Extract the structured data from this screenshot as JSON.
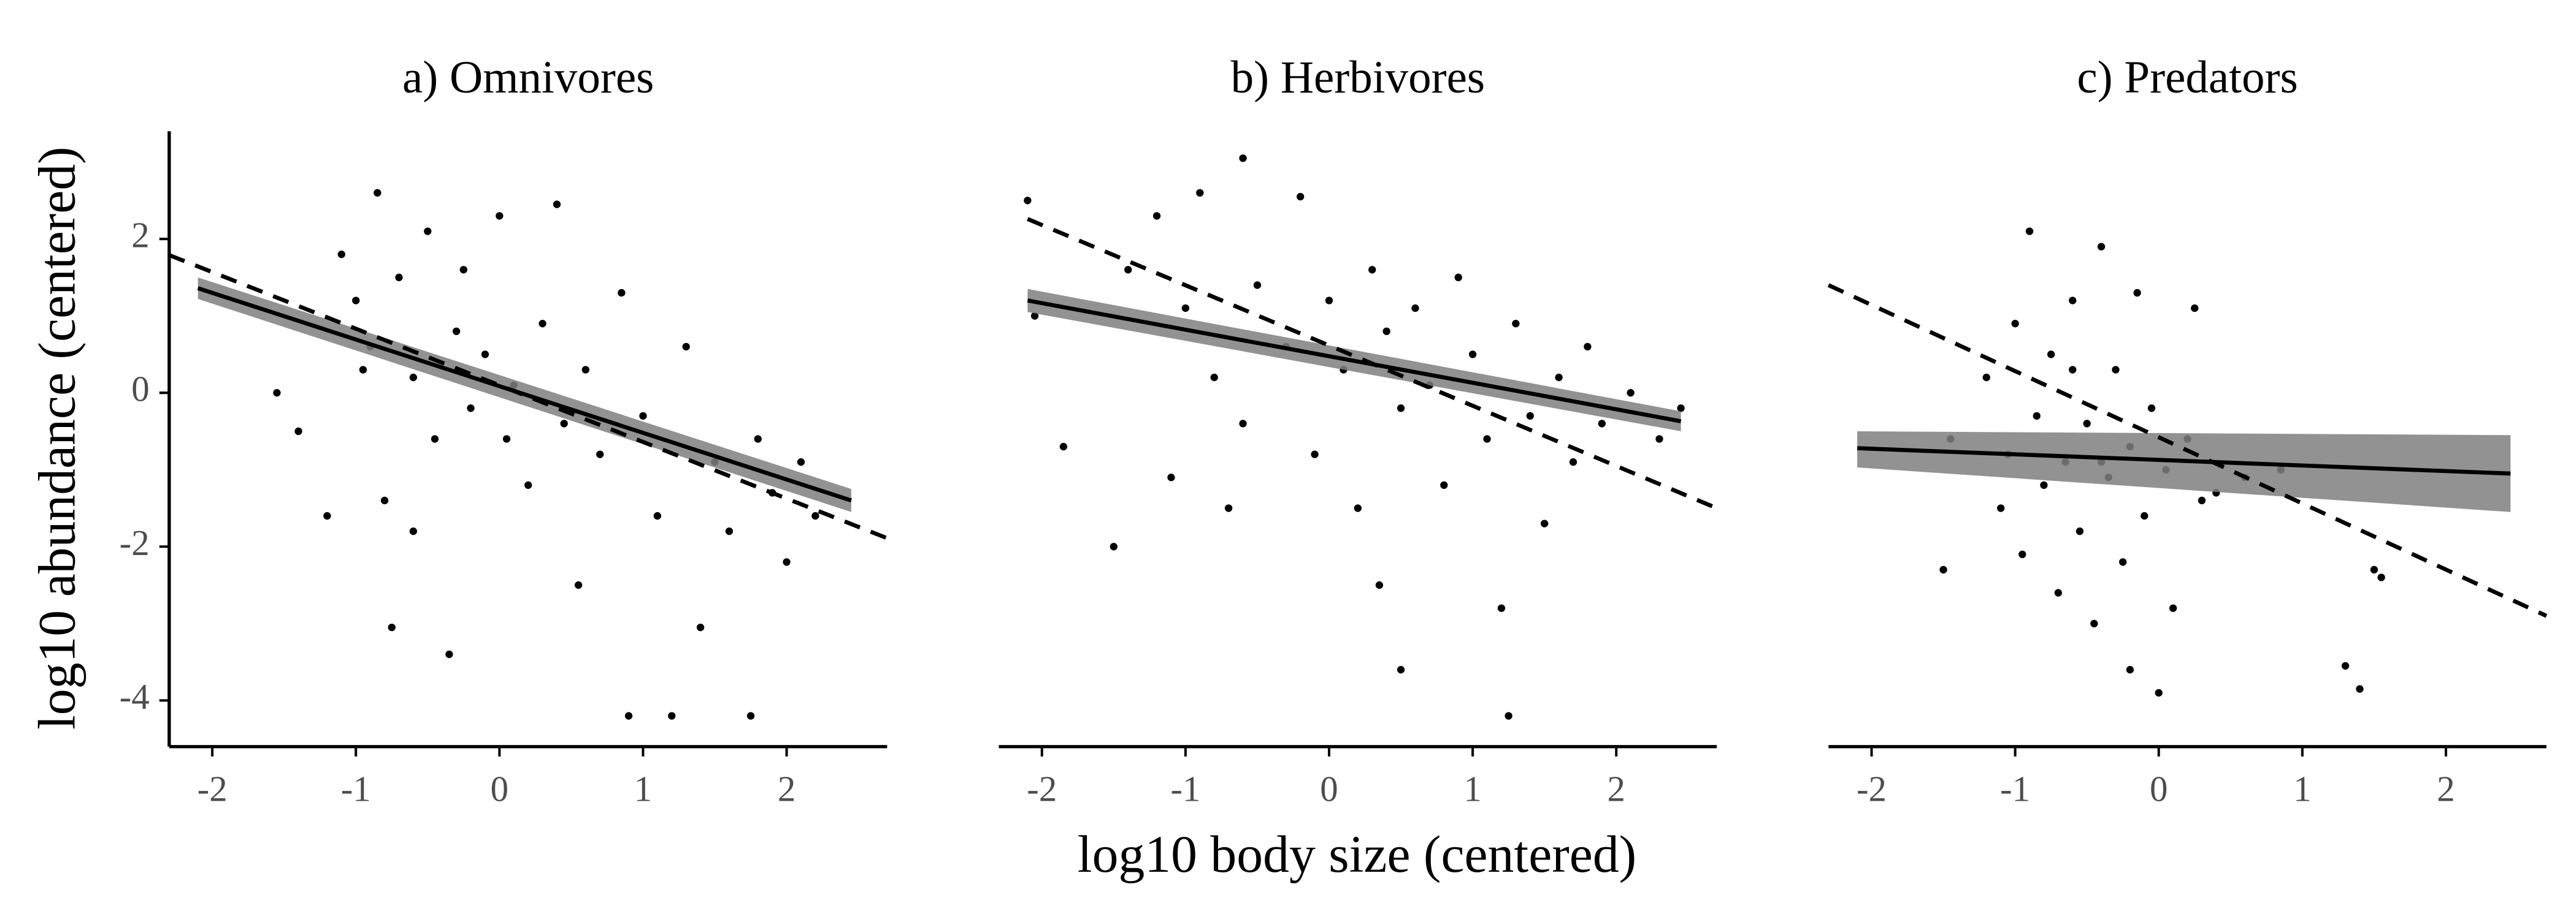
{
  "chart_data": [
    {
      "type": "scatter",
      "title": "a) Omnivores",
      "y_label": "log10 abundance (centered)",
      "color": "#000000",
      "x": [
        -1.1,
        -1,
        -0.9,
        -0.85,
        -0.8,
        -0.75,
        -0.7,
        -0.6,
        -0.5,
        -0.45,
        -0.35,
        -0.3,
        -0.25,
        -0.2,
        -0.1,
        0,
        0.1,
        0.2,
        0.3,
        0.4,
        0.45,
        0.55,
        0.6,
        0.7,
        0.85,
        0.9,
        1,
        1.1,
        1.2,
        1.3,
        1.4,
        1.5,
        1.6,
        1.75,
        1.8,
        1.9,
        2,
        2.1,
        2.2,
        -1.55,
        -1.4,
        -1.2,
        -0.95,
        0.05,
        -0.6
      ],
      "y": [
        1.8,
        1.2,
        0.6,
        2.6,
        -1.4,
        -3.05,
        1.5,
        0.2,
        2.1,
        -0.6,
        -3.4,
        0.8,
        1.6,
        -0.2,
        0.5,
        2.3,
        0.1,
        -1.2,
        0.9,
        2.45,
        -0.4,
        -2.5,
        0.3,
        -0.8,
        1.3,
        -4.2,
        -0.3,
        -1.6,
        -4.2,
        0.6,
        -3.05,
        -0.9,
        -1.8,
        -4.2,
        -0.6,
        -1.3,
        -2.2,
        -0.9,
        -1.6,
        0,
        -0.5,
        -1.6,
        0.3,
        -0.6,
        -1.8
      ],
      "fit": {
        "x": [
          -2.1,
          2.45
        ],
        "values": [
          1.36,
          -1.4
        ],
        "lower": [
          1.22,
          -1.55
        ],
        "upper": [
          1.5,
          -1.25
        ]
      },
      "reference": {
        "x": [
          -2.3,
          2.7
        ],
        "values": [
          1.79,
          -1.89
        ]
      },
      "xlim": [
        -2.3,
        2.7
      ],
      "ylim": [
        -4.6,
        3.4
      ],
      "xticks": [
        -2,
        -1,
        0,
        1,
        2
      ],
      "yticks": [
        -4,
        -2,
        0,
        2
      ]
    },
    {
      "type": "scatter",
      "title": "b) Herbivores",
      "x_label": "log10 body size (centered)",
      "color": "#000000",
      "x": [
        -2.1,
        -2.05,
        -1.85,
        -1.5,
        -1.4,
        -1.2,
        -1.1,
        -1,
        -0.9,
        -0.8,
        -0.6,
        -0.6,
        -0.5,
        -0.3,
        -0.2,
        -0.1,
        0,
        0.1,
        0.2,
        0.3,
        0.4,
        0.5,
        0.5,
        0.6,
        0.7,
        0.8,
        0.9,
        1,
        1.1,
        1.2,
        1.25,
        1.3,
        1.4,
        1.5,
        1.6,
        1.7,
        1.8,
        1.9,
        2.1,
        2.3,
        2.45,
        0.35,
        -0.7
      ],
      "y": [
        2.5,
        1,
        -0.7,
        -2,
        1.6,
        2.3,
        -1.1,
        1.1,
        2.6,
        0.2,
        3.05,
        -0.4,
        1.4,
        0.6,
        2.55,
        -0.8,
        1.2,
        0.3,
        -1.5,
        1.6,
        0.8,
        -3.6,
        -0.2,
        1.1,
        0.1,
        -1.2,
        1.5,
        0.5,
        -0.6,
        -2.8,
        -4.2,
        0.9,
        -0.3,
        -1.7,
        0.2,
        -0.9,
        0.6,
        -0.4,
        0,
        -0.6,
        -0.2,
        -2.5,
        -1.5
      ],
      "fit": {
        "x": [
          -2.1,
          2.45
        ],
        "values": [
          1.2,
          -0.37
        ],
        "lower": [
          1.05,
          -0.5
        ],
        "upper": [
          1.35,
          -0.24
        ]
      },
      "reference": {
        "x": [
          -2.1,
          2.7
        ],
        "values": [
          2.26,
          -1.5
        ]
      },
      "xlim": [
        -2.3,
        2.7
      ],
      "ylim": [
        -4.6,
        3.4
      ],
      "xticks": [
        -2,
        -1,
        0,
        1,
        2
      ]
    },
    {
      "type": "scatter",
      "title": "c) Predators",
      "color": "#000000",
      "x": [
        -1.5,
        -1.45,
        -1.2,
        -1.1,
        -1.05,
        -1,
        -0.95,
        -0.9,
        -0.85,
        -0.8,
        -0.75,
        -0.7,
        -0.65,
        -0.6,
        -0.55,
        -0.5,
        -0.45,
        -0.4,
        -0.35,
        -0.3,
        -0.25,
        -0.2,
        -0.15,
        -0.1,
        -0.05,
        0,
        0.05,
        0.1,
        0.2,
        0.25,
        0.3,
        0.4,
        0.6,
        0.85,
        -0.2,
        1.3,
        1.4,
        1.5,
        1.55,
        -0.6,
        -0.4
      ],
      "y": [
        -2.3,
        -0.6,
        0.2,
        -1.5,
        -0.8,
        0.9,
        -2.1,
        2.1,
        -0.3,
        -1.2,
        0.5,
        -2.6,
        -0.9,
        1.2,
        -1.8,
        -0.4,
        -3,
        1.9,
        -1.1,
        0.3,
        -2.2,
        -0.7,
        1.3,
        -1.6,
        -0.2,
        -3.9,
        -1,
        -2.8,
        -0.6,
        1.1,
        -1.4,
        -1.3,
        -1.1,
        -1,
        -3.6,
        -3.55,
        -3.85,
        -2.3,
        -2.4,
        0.3,
        -0.9
      ],
      "fit": {
        "x": [
          -2.1,
          2.45
        ],
        "values": [
          -0.72,
          -1.05
        ],
        "lower": [
          -0.97,
          -1.55
        ],
        "upper": [
          -0.5,
          -0.55
        ]
      },
      "reference": {
        "x": [
          -2.3,
          2.7
        ],
        "values": [
          1.4,
          -2.9
        ]
      },
      "xlim": [
        -2.3,
        2.7
      ],
      "ylim": [
        -4.6,
        3.4
      ],
      "xticks": [
        -2,
        -1,
        0,
        1,
        2
      ]
    }
  ]
}
